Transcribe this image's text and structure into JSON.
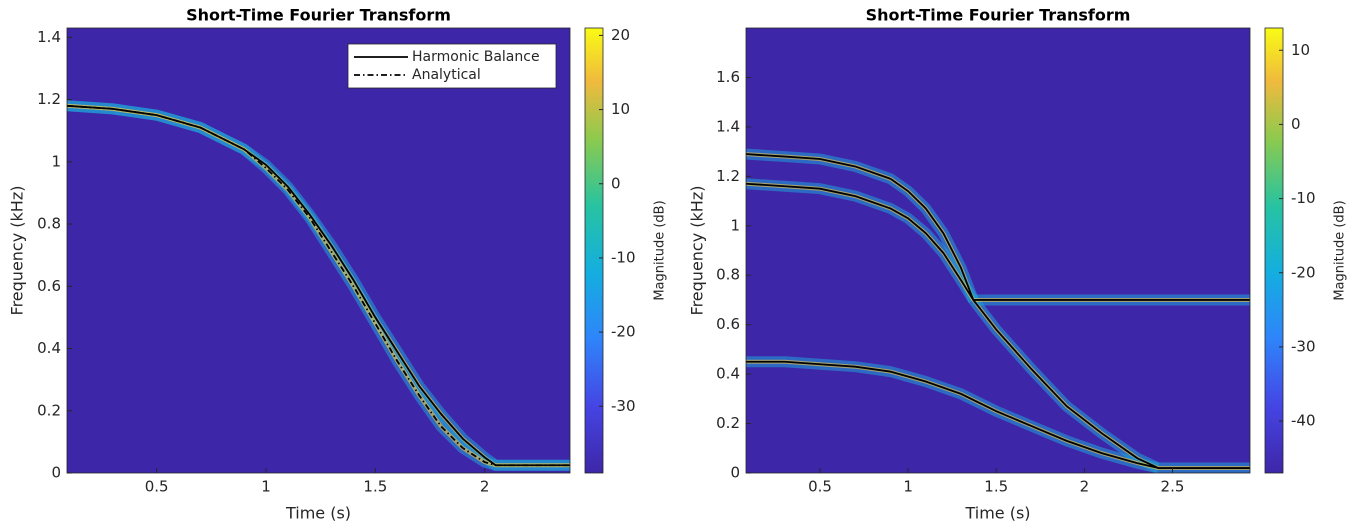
{
  "chart_data": [
    {
      "type": "spectrogram",
      "title": "Short-Time Fourier Transform",
      "xlabel": "Time (s)",
      "ylabel": "Frequency (kHz)",
      "xlim": [
        0.09,
        2.39
      ],
      "ylim": [
        0,
        1.43
      ],
      "xticks": [
        0.5,
        1,
        1.5,
        2
      ],
      "yticks": [
        0,
        0.2,
        0.4,
        0.6,
        0.8,
        1,
        1.2,
        1.4
      ],
      "colorbar_label": "Magnitude (dB)",
      "clim": [
        -39,
        21
      ],
      "cticks": [
        -30,
        -20,
        -10,
        0,
        10,
        20
      ],
      "colormap": "parula",
      "legend": "upper right",
      "series": [
        {
          "name": "Harmonic Balance",
          "color": "#000000",
          "style": "solid",
          "x": [
            0.09,
            0.3,
            0.5,
            0.7,
            0.9,
            1.0,
            1.1,
            1.2,
            1.3,
            1.4,
            1.5,
            1.6,
            1.7,
            1.8,
            1.9,
            2.0,
            2.05,
            2.39
          ],
          "values": [
            1.18,
            1.17,
            1.15,
            1.11,
            1.04,
            0.99,
            0.92,
            0.83,
            0.73,
            0.62,
            0.5,
            0.39,
            0.28,
            0.19,
            0.11,
            0.05,
            0.025,
            0.025
          ]
        },
        {
          "name": "Analytical",
          "color": "#000000",
          "style": "dashdot",
          "x": [
            0.09,
            0.3,
            0.5,
            0.7,
            0.9,
            1.0,
            1.1,
            1.2,
            1.3,
            1.4,
            1.5,
            1.6,
            1.7,
            1.8,
            1.9,
            2.0,
            2.05,
            2.39
          ],
          "values": [
            1.18,
            1.17,
            1.15,
            1.11,
            1.04,
            0.98,
            0.91,
            0.82,
            0.71,
            0.6,
            0.48,
            0.36,
            0.25,
            0.15,
            0.08,
            0.035,
            0.025,
            0.025
          ]
        }
      ]
    },
    {
      "type": "spectrogram",
      "title": "Short-Time Fourier Transform",
      "xlabel": "Time (s)",
      "ylabel": "Frequency (kHz)",
      "xlim": [
        0.08,
        2.94
      ],
      "ylim": [
        0,
        1.8
      ],
      "xticks": [
        0.5,
        1,
        1.5,
        2,
        2.5
      ],
      "yticks": [
        0,
        0.2,
        0.4,
        0.6,
        0.8,
        1,
        1.2,
        1.4,
        1.6
      ],
      "colorbar_label": "Magnitude (dB)",
      "clim": [
        -47,
        13
      ],
      "cticks": [
        -40,
        -30,
        -20,
        -10,
        0,
        10
      ],
      "colormap": "parula",
      "series": [
        {
          "color": "#000000",
          "style": "solid",
          "x": [
            0.08,
            0.3,
            0.5,
            0.7,
            0.9,
            1.0,
            1.1,
            1.2,
            1.3,
            1.37,
            1.5,
            1.7,
            1.9,
            2.1,
            2.3,
            2.42,
            2.94
          ],
          "values": [
            1.29,
            1.28,
            1.27,
            1.24,
            1.19,
            1.14,
            1.07,
            0.97,
            0.83,
            0.7,
            0.58,
            0.42,
            0.27,
            0.16,
            0.06,
            0.02,
            0.02
          ]
        },
        {
          "color": "#000000",
          "style": "solid",
          "x": [
            0.08,
            0.3,
            0.5,
            0.7,
            0.9,
            1.0,
            1.1,
            1.2,
            1.3,
            1.37
          ],
          "values": [
            1.17,
            1.16,
            1.15,
            1.12,
            1.07,
            1.03,
            0.97,
            0.89,
            0.78,
            0.7
          ]
        },
        {
          "color": "#000000",
          "style": "solid",
          "x": [
            1.37,
            2.94
          ],
          "values": [
            0.7,
            0.7
          ]
        },
        {
          "color": "#000000",
          "style": "solid",
          "x": [
            0.08,
            0.3,
            0.5,
            0.7,
            0.9,
            1.1,
            1.3,
            1.5,
            1.7,
            1.9,
            2.1,
            2.3,
            2.42
          ],
          "values": [
            0.45,
            0.45,
            0.44,
            0.43,
            0.41,
            0.37,
            0.32,
            0.25,
            0.19,
            0.13,
            0.08,
            0.04,
            0.02
          ]
        }
      ]
    }
  ]
}
